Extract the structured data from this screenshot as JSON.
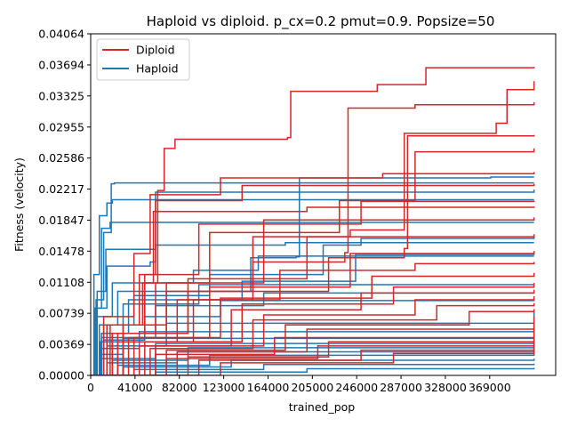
{
  "chart_data": {
    "type": "line",
    "title": "Haploid vs diploid. p_cx=0.2 pmut=0.9. Popsize=50",
    "xlabel": "trained_pop",
    "ylabel": "Fitness (velocity)",
    "xlim": [
      0,
      430000
    ],
    "ylim": [
      0,
      0.04064
    ],
    "xticks": [
      0,
      41000,
      82000,
      123000,
      164000,
      205000,
      246000,
      287000,
      328000,
      369000
    ],
    "xtick_labels": [
      "0",
      "41000",
      "82000",
      "123000",
      "164000",
      "205000",
      "246000",
      "287000",
      "328000",
      "369000"
    ],
    "yticks": [
      0.0,
      0.00369,
      0.00739,
      0.01108,
      0.01478,
      0.01847,
      0.02217,
      0.02586,
      0.02955,
      0.03325,
      0.03694,
      0.04064
    ],
    "ytick_labels": [
      "0.00000",
      "0.00369",
      "0.00739",
      "0.01108",
      "0.01478",
      "0.01847",
      "0.02217",
      "0.02586",
      "0.02955",
      "0.03325",
      "0.03694",
      "0.04064"
    ],
    "grid": false,
    "legend_position": "top-left",
    "colors": {
      "Diploid": "#d62728",
      "Haploid": "#1f77b4"
    },
    "series": [
      {
        "name": "Haploid",
        "group": "Haploid",
        "x": [
          0,
          3000,
          8000,
          15000,
          20000,
          410000
        ],
        "y": [
          0.0,
          0.012,
          0.019,
          0.0205,
          0.0209,
          0.0209
        ]
      },
      {
        "name": "Haploid",
        "group": "Haploid",
        "x": [
          0,
          5000,
          12000,
          19000,
          22000,
          410000
        ],
        "y": [
          0.0,
          0.009,
          0.017,
          0.0228,
          0.0229,
          0.0229
        ]
      },
      {
        "name": "Haploid",
        "group": "Haploid",
        "x": [
          0,
          4000,
          10000,
          18000,
          410000
        ],
        "y": [
          0.0,
          0.008,
          0.0175,
          0.0182,
          0.0182
        ]
      },
      {
        "name": "Haploid",
        "group": "Haploid",
        "x": [
          0,
          6000,
          14000,
          60000,
          180000,
          410000
        ],
        "y": [
          0.0,
          0.01,
          0.015,
          0.0155,
          0.0158,
          0.0158
        ]
      },
      {
        "name": "Haploid",
        "group": "Haploid",
        "x": [
          0,
          5000,
          15000,
          55000,
          60000,
          410000
        ],
        "y": [
          0.0,
          0.008,
          0.013,
          0.0135,
          0.0218,
          0.0221
        ]
      },
      {
        "name": "Haploid",
        "group": "Haploid",
        "x": [
          0,
          8000,
          25000,
          148000,
          190000,
          193000,
          370000,
          410000
        ],
        "y": [
          0.0,
          0.006,
          0.01,
          0.014,
          0.0141,
          0.0235,
          0.0236,
          0.0236
        ]
      },
      {
        "name": "Haploid",
        "group": "Haploid",
        "x": [
          0,
          5000,
          20000,
          95000,
          155000,
          410000
        ],
        "y": [
          0.0,
          0.007,
          0.011,
          0.0125,
          0.0142,
          0.0142
        ]
      },
      {
        "name": "Haploid",
        "group": "Haploid",
        "x": [
          0,
          12000,
          40000,
          110000,
          215000,
          250000,
          410000
        ],
        "y": [
          0.0,
          0.006,
          0.0095,
          0.012,
          0.0155,
          0.0163,
          0.0166
        ]
      },
      {
        "name": "Haploid",
        "group": "Haploid",
        "x": [
          0,
          10000,
          35000,
          140000,
          245000,
          410000
        ],
        "y": [
          0.0,
          0.005,
          0.009,
          0.0112,
          0.0144,
          0.0145
        ]
      },
      {
        "name": "Haploid",
        "group": "Haploid",
        "x": [
          0,
          9000,
          30000,
          100000,
          410000
        ],
        "y": [
          0.0,
          0.004,
          0.0085,
          0.0108,
          0.0108
        ]
      },
      {
        "name": "Haploid",
        "group": "Haploid",
        "x": [
          0,
          10000,
          60000,
          160000,
          410000
        ],
        "y": [
          0.0,
          0.0045,
          0.0083,
          0.0098,
          0.0098
        ]
      },
      {
        "name": "Haploid",
        "group": "Haploid",
        "x": [
          0,
          12000,
          50000,
          120000,
          410000
        ],
        "y": [
          0.0,
          0.0042,
          0.007,
          0.0089,
          0.009
        ]
      },
      {
        "name": "Haploid",
        "group": "Haploid",
        "x": [
          0,
          15000,
          70000,
          410000
        ],
        "y": [
          0.0,
          0.0035,
          0.0062,
          0.0077
        ]
      },
      {
        "name": "Haploid",
        "group": "Haploid",
        "x": [
          0,
          10000,
          45000,
          410000
        ],
        "y": [
          0.0,
          0.0032,
          0.0052,
          0.0056
        ]
      },
      {
        "name": "Haploid",
        "group": "Haploid",
        "x": [
          0,
          8000,
          30000,
          410000
        ],
        "y": [
          0.0,
          0.0025,
          0.0044,
          0.0046
        ]
      },
      {
        "name": "Haploid",
        "group": "Haploid",
        "x": [
          0,
          10000,
          60000,
          410000
        ],
        "y": [
          0.0,
          0.002,
          0.0038,
          0.004
        ]
      },
      {
        "name": "Haploid",
        "group": "Haploid",
        "x": [
          0,
          20000,
          90000,
          410000
        ],
        "y": [
          0.0,
          0.0018,
          0.0033,
          0.0036
        ]
      },
      {
        "name": "Haploid",
        "group": "Haploid",
        "x": [
          0,
          15000,
          80000,
          410000
        ],
        "y": [
          0.0,
          0.0015,
          0.0028,
          0.003
        ]
      },
      {
        "name": "Haploid",
        "group": "Haploid",
        "x": [
          0,
          25000,
          110000,
          410000
        ],
        "y": [
          0.0,
          0.0012,
          0.0024,
          0.0026
        ]
      },
      {
        "name": "Haploid",
        "group": "Haploid",
        "x": [
          0,
          30000,
          130000,
          410000
        ],
        "y": [
          0.0,
          0.001,
          0.0018,
          0.002
        ]
      },
      {
        "name": "Haploid",
        "group": "Haploid",
        "x": [
          0,
          40000,
          160000,
          410000
        ],
        "y": [
          0.0,
          0.0007,
          0.0013,
          0.0014
        ]
      },
      {
        "name": "Haploid",
        "group": "Haploid",
        "x": [
          0,
          60000,
          200000,
          410000
        ],
        "y": [
          0.0,
          0.0004,
          0.0008,
          0.0009
        ]
      },
      {
        "name": "Diploid",
        "group": "Diploid",
        "x": [
          0,
          20000,
          60000,
          62000,
          68000,
          78000,
          182000,
          185000,
          265000,
          310000,
          410000
        ],
        "y": [
          0.0,
          0.005,
          0.011,
          0.022,
          0.027,
          0.0281,
          0.0283,
          0.0338,
          0.0346,
          0.0366,
          0.0367
        ]
      },
      {
        "name": "Diploid",
        "group": "Diploid",
        "x": [
          0,
          30000,
          70000,
          150000,
          240000,
          290000,
          375000,
          385000,
          410000
        ],
        "y": [
          0.0,
          0.005,
          0.01,
          0.0165,
          0.0173,
          0.0288,
          0.03,
          0.034,
          0.035
        ]
      },
      {
        "name": "Diploid",
        "group": "Diploid",
        "x": [
          0,
          25000,
          80000,
          150000,
          235000,
          238000,
          300000,
          410000
        ],
        "y": [
          0.0,
          0.004,
          0.009,
          0.0135,
          0.0146,
          0.0318,
          0.0322,
          0.0325
        ]
      },
      {
        "name": "Diploid",
        "group": "Diploid",
        "x": [
          0,
          20000,
          90000,
          220000,
          290000,
          293000,
          410000
        ],
        "y": [
          0.0,
          0.005,
          0.01,
          0.014,
          0.0151,
          0.0285,
          0.0286
        ]
      },
      {
        "name": "Diploid",
        "group": "Diploid",
        "x": [
          0,
          15000,
          50000,
          110000,
          230000,
          300000,
          410000
        ],
        "y": [
          0.0,
          0.006,
          0.011,
          0.017,
          0.0208,
          0.0266,
          0.027
        ]
      },
      {
        "name": "Diploid",
        "group": "Diploid",
        "x": [
          0,
          12000,
          40000,
          55000,
          120000,
          270000,
          410000
        ],
        "y": [
          0.0,
          0.007,
          0.0145,
          0.0215,
          0.0235,
          0.024,
          0.0242
        ]
      },
      {
        "name": "Diploid",
        "group": "Diploid",
        "x": [
          0,
          15000,
          45000,
          60000,
          140000,
          410000
        ],
        "y": [
          0.0,
          0.006,
          0.012,
          0.0208,
          0.0226,
          0.0228
        ]
      },
      {
        "name": "Diploid",
        "group": "Diploid",
        "x": [
          0,
          20000,
          50000,
          100000,
          250000,
          410000
        ],
        "y": [
          0.0,
          0.005,
          0.012,
          0.018,
          0.0207,
          0.0208
        ]
      },
      {
        "name": "Diploid",
        "group": "Diploid",
        "x": [
          0,
          18000,
          48000,
          58000,
          200000,
          410000
        ],
        "y": [
          0.0,
          0.006,
          0.011,
          0.0195,
          0.02,
          0.0201
        ]
      },
      {
        "name": "Diploid",
        "group": "Diploid",
        "x": [
          0,
          30000,
          70000,
          160000,
          410000
        ],
        "y": [
          0.0,
          0.006,
          0.011,
          0.0185,
          0.0188
        ]
      },
      {
        "name": "Diploid",
        "group": "Diploid",
        "x": [
          0,
          25000,
          90000,
          200000,
          410000
        ],
        "y": [
          0.0,
          0.005,
          0.0115,
          0.0165,
          0.0168
        ]
      },
      {
        "name": "Diploid",
        "group": "Diploid",
        "x": [
          0,
          35000,
          110000,
          240000,
          410000
        ],
        "y": [
          0.0,
          0.0045,
          0.0105,
          0.0145,
          0.0148
        ]
      },
      {
        "name": "Diploid",
        "group": "Diploid",
        "x": [
          0,
          30000,
          95000,
          175000,
          300000,
          410000
        ],
        "y": [
          0.0,
          0.004,
          0.009,
          0.0125,
          0.0133,
          0.0135
        ]
      },
      {
        "name": "Diploid",
        "group": "Diploid",
        "x": [
          0,
          40000,
          120000,
          260000,
          410000
        ],
        "y": [
          0.0,
          0.0045,
          0.0092,
          0.0118,
          0.0122
        ]
      },
      {
        "name": "Diploid",
        "group": "Diploid",
        "x": [
          0,
          50000,
          140000,
          280000,
          410000
        ],
        "y": [
          0.0,
          0.004,
          0.0085,
          0.0105,
          0.011
        ]
      },
      {
        "name": "Diploid",
        "group": "Diploid",
        "x": [
          0,
          45000,
          130000,
          250000,
          410000
        ],
        "y": [
          0.0,
          0.0035,
          0.0078,
          0.0098,
          0.0102
        ]
      },
      {
        "name": "Diploid",
        "group": "Diploid",
        "x": [
          0,
          60000,
          160000,
          300000,
          410000
        ],
        "y": [
          0.0,
          0.0035,
          0.0072,
          0.009,
          0.0094
        ]
      },
      {
        "name": "Diploid",
        "group": "Diploid",
        "x": [
          0,
          55000,
          150000,
          320000,
          410000
        ],
        "y": [
          0.0,
          0.0032,
          0.0066,
          0.0083,
          0.0086
        ]
      },
      {
        "name": "Diploid",
        "group": "Diploid",
        "x": [
          0,
          70000,
          180000,
          350000,
          410000
        ],
        "y": [
          0.0,
          0.003,
          0.006,
          0.0076,
          0.0079
        ]
      },
      {
        "name": "Diploid",
        "group": "Diploid",
        "x": [
          0,
          80000,
          200000,
          410000
        ],
        "y": [
          0.0,
          0.0028,
          0.0055,
          0.007
        ]
      },
      {
        "name": "Diploid",
        "group": "Diploid",
        "x": [
          0,
          60000,
          170000,
          410000
        ],
        "y": [
          0.0,
          0.0025,
          0.0045,
          0.006
        ]
      },
      {
        "name": "Diploid",
        "group": "Diploid",
        "x": [
          0,
          90000,
          220000,
          410000
        ],
        "y": [
          0.0,
          0.0022,
          0.004,
          0.0052
        ]
      },
      {
        "name": "Diploid",
        "group": "Diploid",
        "x": [
          0,
          70000,
          210000,
          410000
        ],
        "y": [
          0.0,
          0.002,
          0.0035,
          0.0045
        ]
      },
      {
        "name": "Diploid",
        "group": "Diploid",
        "x": [
          0,
          100000,
          250000,
          410000
        ],
        "y": [
          0.0,
          0.0018,
          0.003,
          0.0039
        ]
      },
      {
        "name": "Diploid",
        "group": "Diploid",
        "x": [
          0,
          120000,
          280000,
          410000
        ],
        "y": [
          0.0,
          0.0015,
          0.0026,
          0.0033
        ]
      }
    ]
  }
}
